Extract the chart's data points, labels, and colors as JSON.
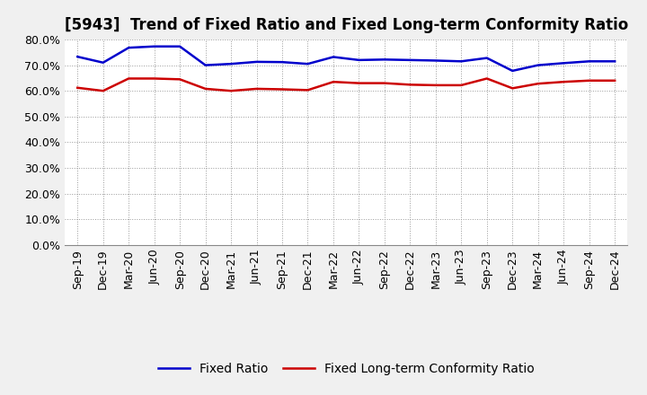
{
  "title": "[5943]  Trend of Fixed Ratio and Fixed Long-term Conformity Ratio",
  "x_labels": [
    "Sep-19",
    "Dec-19",
    "Mar-20",
    "Jun-20",
    "Sep-20",
    "Dec-20",
    "Mar-21",
    "Jun-21",
    "Sep-21",
    "Dec-21",
    "Mar-22",
    "Jun-22",
    "Sep-22",
    "Dec-22",
    "Mar-23",
    "Jun-23",
    "Sep-23",
    "Dec-23",
    "Mar-24",
    "Jun-24",
    "Sep-24",
    "Dec-24"
  ],
  "fixed_ratio": [
    0.733,
    0.71,
    0.768,
    0.773,
    0.773,
    0.7,
    0.705,
    0.713,
    0.712,
    0.705,
    0.732,
    0.72,
    0.722,
    0.72,
    0.718,
    0.715,
    0.728,
    0.678,
    0.7,
    0.708,
    0.715,
    0.715
  ],
  "fixed_lt_ratio": [
    0.612,
    0.6,
    0.648,
    0.648,
    0.645,
    0.608,
    0.6,
    0.608,
    0.606,
    0.603,
    0.635,
    0.63,
    0.63,
    0.624,
    0.622,
    0.622,
    0.648,
    0.61,
    0.628,
    0.635,
    0.64,
    0.64
  ],
  "fixed_ratio_color": "#0000CC",
  "fixed_lt_ratio_color": "#CC0000",
  "ylim": [
    0.0,
    0.8
  ],
  "yticks": [
    0.0,
    0.1,
    0.2,
    0.3,
    0.4,
    0.5,
    0.6,
    0.7,
    0.8
  ],
  "bg_color": "#F0F0F0",
  "plot_bg_color": "#FFFFFF",
  "grid_color": "#999999",
  "legend_fixed_ratio": "Fixed Ratio",
  "legend_fixed_lt_ratio": "Fixed Long-term Conformity Ratio",
  "line_width": 1.8,
  "title_fontsize": 12,
  "tick_fontsize": 9,
  "legend_fontsize": 10
}
